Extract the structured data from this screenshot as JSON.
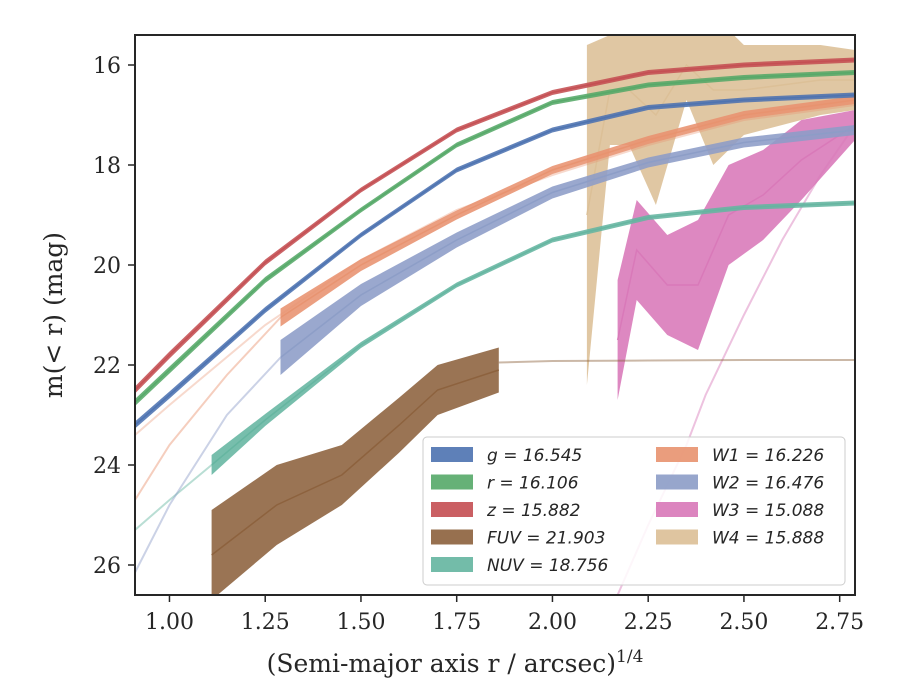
{
  "chart_data": {
    "type": "line",
    "title": "",
    "xlabel": "(Semi-major axis r / arcsec)",
    "xlabel_sup": "1/4",
    "ylabel": "m(< r) (mag)",
    "xlim": [
      0.91,
      2.79
    ],
    "ylim": [
      26.6,
      15.4
    ],
    "y_inverted": true,
    "x_ticks": [
      1.0,
      1.25,
      1.5,
      1.75,
      2.0,
      2.25,
      2.5,
      2.75
    ],
    "x_tick_labels": [
      "1.00",
      "1.25",
      "1.50",
      "1.75",
      "2.00",
      "2.25",
      "2.50",
      "2.75"
    ],
    "y_ticks": [
      16,
      18,
      20,
      22,
      24,
      26
    ],
    "y_tick_labels": [
      "16",
      "18",
      "20",
      "22",
      "24",
      "26"
    ],
    "grid": false,
    "legend_position": "lower-right",
    "series": [
      {
        "name": "g",
        "label": "g = 16.545",
        "color": "#4c72b0",
        "x": [
          0.91,
          1.0,
          1.25,
          1.5,
          1.75,
          2.0,
          2.25,
          2.5,
          2.79
        ],
        "y": [
          23.2,
          22.6,
          20.9,
          19.4,
          18.1,
          17.3,
          16.85,
          16.7,
          16.6
        ],
        "band": [
          0.07,
          0.07,
          0.06,
          0.05,
          0.05,
          0.05,
          0.05,
          0.05,
          0.05
        ],
        "faint_x": [],
        "faint_y": []
      },
      {
        "name": "r",
        "label": "r = 16.106",
        "color": "#55a868",
        "x": [
          0.91,
          1.0,
          1.25,
          1.5,
          1.75,
          2.0,
          2.25,
          2.5,
          2.79
        ],
        "y": [
          22.75,
          22.1,
          20.3,
          18.9,
          17.6,
          16.75,
          16.4,
          16.25,
          16.15
        ],
        "band": [
          0.07,
          0.07,
          0.06,
          0.05,
          0.05,
          0.05,
          0.05,
          0.05,
          0.05
        ],
        "faint_x": [],
        "faint_y": []
      },
      {
        "name": "z",
        "label": "z = 15.882",
        "color": "#c44e52",
        "x": [
          0.91,
          1.0,
          1.25,
          1.5,
          1.75,
          2.0,
          2.25,
          2.5,
          2.79
        ],
        "y": [
          22.5,
          21.8,
          19.95,
          18.5,
          17.3,
          16.55,
          16.15,
          16.0,
          15.9
        ],
        "band": [
          0.07,
          0.07,
          0.06,
          0.05,
          0.05,
          0.05,
          0.05,
          0.05,
          0.05
        ],
        "faint_x": [],
        "faint_y": []
      },
      {
        "name": "FUV",
        "label": "FUV = 21.903",
        "color": "#8c613c",
        "x": [
          1.11,
          1.28,
          1.45,
          1.6,
          1.7,
          1.86
        ],
        "y": [
          25.8,
          24.8,
          24.2,
          23.2,
          22.5,
          22.1
        ],
        "band": [
          0.9,
          0.8,
          0.6,
          0.55,
          0.5,
          0.45
        ],
        "faint_x": [
          1.86,
          2.0,
          2.25,
          2.5,
          2.79
        ],
        "faint_y": [
          21.95,
          21.92,
          21.91,
          21.9,
          21.9
        ]
      },
      {
        "name": "NUV",
        "label": "NUV = 18.756",
        "color": "#64b5a0",
        "x": [
          1.11,
          1.25,
          1.5,
          1.75,
          2.0,
          2.25,
          2.5,
          2.79
        ],
        "y": [
          24.0,
          23.1,
          21.6,
          20.4,
          19.5,
          19.05,
          18.85,
          18.76
        ],
        "band": [
          0.2,
          0.12,
          0.06,
          0.05,
          0.05,
          0.05,
          0.05,
          0.05
        ],
        "faint_x": [
          0.91,
          1.0,
          1.11
        ],
        "faint_y": [
          25.3,
          24.7,
          24.0
        ]
      },
      {
        "name": "W1",
        "label": "W1 = 16.226",
        "color": "#e8926f",
        "x": [
          1.29,
          1.5,
          1.75,
          2.0,
          2.25,
          2.5,
          2.79
        ],
        "y": [
          21.05,
          20.0,
          19.0,
          18.1,
          17.5,
          17.0,
          16.7
        ],
        "band": [
          0.18,
          0.12,
          0.09,
          0.08,
          0.08,
          0.08,
          0.08
        ],
        "faint_x": [
          0.91,
          1.0,
          1.15,
          1.29
        ],
        "faint_y": [
          24.7,
          23.6,
          22.2,
          21.05
        ],
        "faint2_x": [
          0.91,
          1.0,
          1.25,
          1.5,
          1.75,
          2.0,
          2.25,
          2.5,
          2.79
        ],
        "faint2_y": [
          23.4,
          22.8,
          21.2,
          19.9,
          18.9,
          18.2,
          17.6,
          17.1,
          16.8
        ]
      },
      {
        "name": "W2",
        "label": "W2 = 16.476",
        "color": "#8c9cc7",
        "x": [
          1.29,
          1.5,
          1.75,
          2.0,
          2.25,
          2.5,
          2.79
        ],
        "y": [
          21.85,
          20.6,
          19.5,
          18.55,
          17.95,
          17.55,
          17.3
        ],
        "band": [
          0.35,
          0.22,
          0.15,
          0.12,
          0.1,
          0.1,
          0.1
        ],
        "faint_x": [
          0.91,
          1.0,
          1.15,
          1.29
        ],
        "faint_y": [
          26.15,
          24.8,
          23.0,
          21.85
        ]
      },
      {
        "name": "W3",
        "label": "W3 = 15.088",
        "color": "#d878b8",
        "x": [
          2.17,
          2.22,
          2.3,
          2.38,
          2.46,
          2.55,
          2.65,
          2.79
        ],
        "y": [
          21.5,
          19.7,
          20.4,
          20.4,
          19.0,
          18.6,
          17.9,
          17.2
        ],
        "band": [
          1.2,
          1.0,
          1.0,
          1.3,
          1.0,
          0.9,
          0.8,
          0.3
        ],
        "faint_x": [
          2.17,
          2.25,
          2.35,
          2.4,
          2.5,
          2.6,
          2.7,
          2.79
        ],
        "faint_y": [
          26.6,
          25.2,
          23.6,
          22.6,
          21.0,
          19.5,
          18.2,
          17.2
        ]
      },
      {
        "name": "W4",
        "label": "W4 = 15.888",
        "color": "#dcbf96",
        "x": [
          2.09,
          2.15,
          2.2,
          2.27,
          2.35,
          2.42,
          2.5,
          2.6,
          2.7,
          2.79
        ],
        "y": [
          19.0,
          16.5,
          16.5,
          17.0,
          16.0,
          16.5,
          16.5,
          16.4,
          16.3,
          16.3
        ],
        "band": [
          3.4,
          1.1,
          1.1,
          1.8,
          0.7,
          1.5,
          0.9,
          0.8,
          0.7,
          0.6
        ],
        "faint_x": [],
        "faint_y": []
      }
    ]
  }
}
